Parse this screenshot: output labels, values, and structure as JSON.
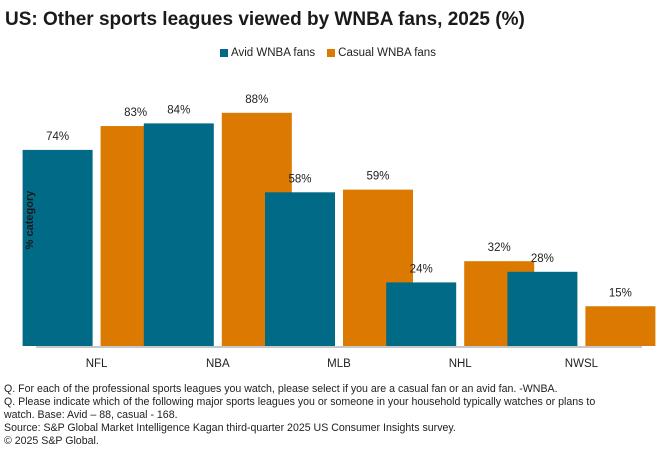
{
  "chart_data": {
    "type": "bar",
    "title": "US: Other sports leagues viewed by WNBA fans, 2025 (%)",
    "xlabel": "",
    "ylabel": "% category",
    "ylim": [
      0,
      100
    ],
    "grid": false,
    "legend_position": "top-center",
    "categories": [
      "NFL",
      "NBA",
      "MLB",
      "NHL",
      "NWSL"
    ],
    "series": [
      {
        "name": "Avid WNBA fans",
        "color": "#006a87",
        "values": [
          74,
          84,
          58,
          24,
          28
        ]
      },
      {
        "name": "Casual WNBA fans",
        "color": "#db7900",
        "values": [
          83,
          88,
          59,
          32,
          15
        ]
      }
    ],
    "value_suffix": "%"
  },
  "footnotes": [
    "Q. For each of the professional sports leagues you watch, please select if you are a casual fan or an avid fan.  -WNBA.",
    "Q. Please indicate which of the following major sports leagues you or someone in your household typically watches or plans to",
    "watch. Base: Avid – 88, casual - 168.",
    "Source: S&P Global Market Intelligence Kagan third-quarter 2025 US Consumer Insights survey.",
    "© 2025 S&P Global."
  ]
}
